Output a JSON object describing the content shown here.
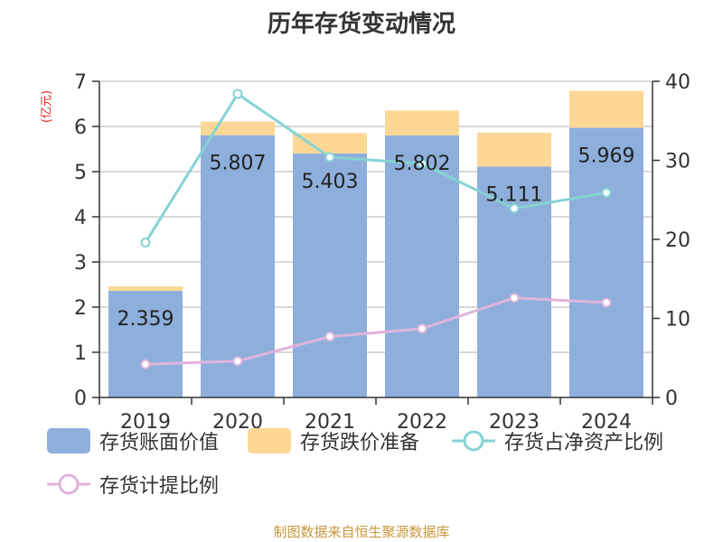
{
  "title": "历年存货变动情况",
  "source_text": "制图数据来自恒生聚源数据库",
  "left_unit": "(亿元)",
  "colors": {
    "book_value": "#8eafdb",
    "impairment": "#fdd796",
    "net_asset_ratio": "#86d3d3",
    "provision_ratio": "#e0b4dc",
    "axis": "#333333",
    "grid": "#cccccc",
    "unit": "#e02020",
    "source": "#c8963c"
  },
  "chart_data": {
    "type": "bar",
    "categories": [
      "2019",
      "2020",
      "2021",
      "2022",
      "2023",
      "2024"
    ],
    "bar_series": [
      {
        "name": "存货账面价值",
        "values": [
          2.359,
          5.807,
          5.403,
          5.802,
          5.111,
          5.969
        ],
        "stack": "s",
        "data_labels": [
          "2.359",
          "5.807",
          "5.403",
          "5.802",
          "5.111",
          "5.969"
        ]
      },
      {
        "name": "存货跌价准备",
        "values": [
          0.1,
          0.3,
          0.45,
          0.55,
          0.75,
          0.82
        ],
        "stack": "s"
      }
    ],
    "line_series": [
      {
        "name": "存货占净资产比例",
        "values": [
          19.6,
          38.4,
          30.4,
          29.6,
          23.9,
          25.9
        ],
        "axis": "right"
      },
      {
        "name": "存货计提比例",
        "values": [
          4.2,
          4.6,
          7.7,
          8.7,
          12.6,
          12.0
        ],
        "axis": "right"
      }
    ],
    "y_left": {
      "min": 0,
      "max": 7,
      "ticks": [
        "0",
        "1",
        "2",
        "3",
        "4",
        "5",
        "6",
        "7"
      ]
    },
    "y_right": {
      "min": 0,
      "max": 40,
      "ticks": [
        "0",
        "10",
        "20",
        "30",
        "40"
      ]
    },
    "grid": true,
    "legend_position": "bottom"
  }
}
